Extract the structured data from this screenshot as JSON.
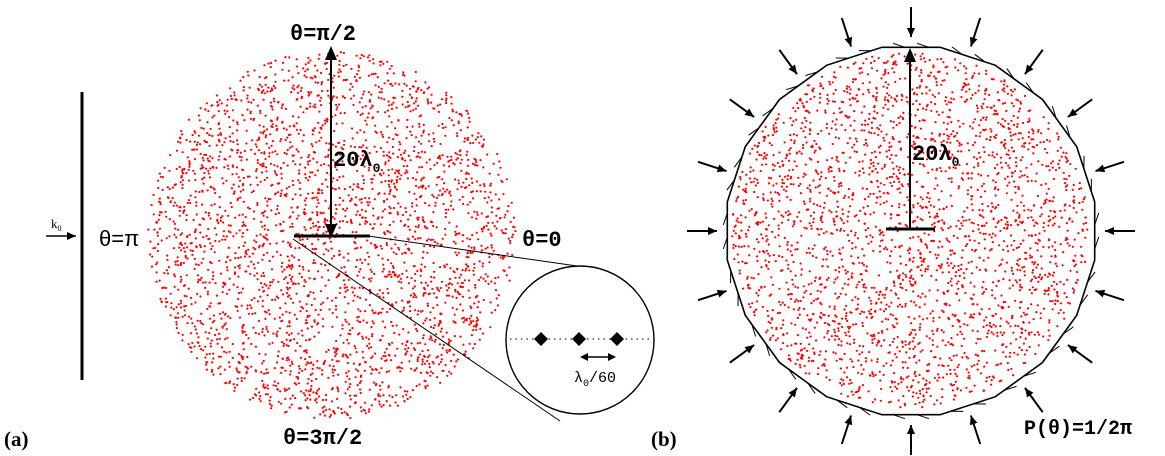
{
  "panel_a": {
    "tag": "(a)",
    "theta_top": "θ=π/2",
    "theta_left": "θ=π",
    "theta_right": "θ=0",
    "theta_bottom": "θ=3π/2",
    "radius_base": "20λ",
    "radius_sub": "0",
    "wave_base": "k",
    "wave_sub": "0",
    "spacing_base": "λ",
    "spacing_sub": "0",
    "spacing_tail": "/60"
  },
  "panel_b": {
    "tag": "(b)",
    "radius_base": "20λ",
    "radius_sub": "0",
    "prob_label": "P(θ)=1/2π"
  },
  "colors": {
    "dots": "#ff0000",
    "ink": "#000000",
    "background": "#ffffff"
  }
}
